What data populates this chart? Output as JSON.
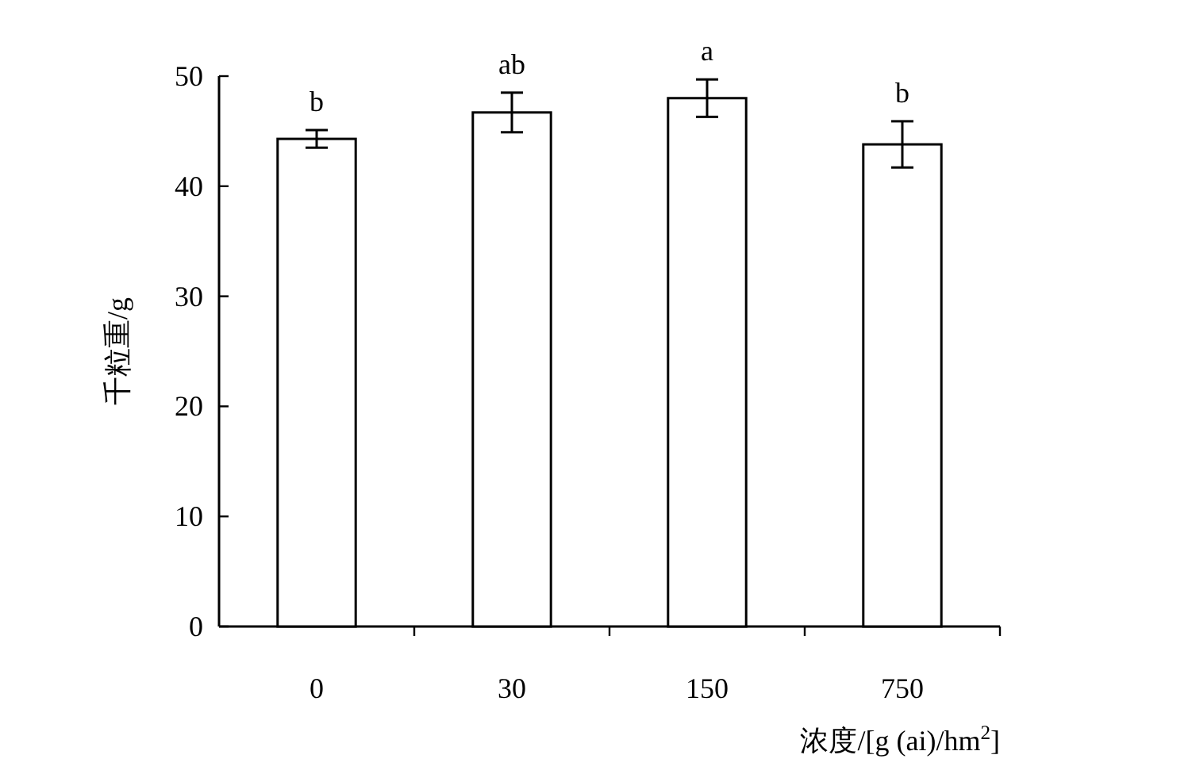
{
  "chart_data": {
    "type": "bar",
    "categories": [
      "0",
      "30",
      "150",
      "750"
    ],
    "values": [
      44.3,
      46.7,
      48.0,
      43.8
    ],
    "errors": [
      0.8,
      1.8,
      1.7,
      2.1
    ],
    "color": "#ffffff",
    "ylim": [
      0,
      50
    ],
    "yticks": [
      0,
      10,
      20,
      30,
      40,
      50
    ],
    "xlabel": "浓度/[g (ai)/hm$^{2}$]",
    "ylabel": "千粒重/g",
    "annotations": [
      "b",
      "ab",
      "a",
      "b"
    ]
  }
}
